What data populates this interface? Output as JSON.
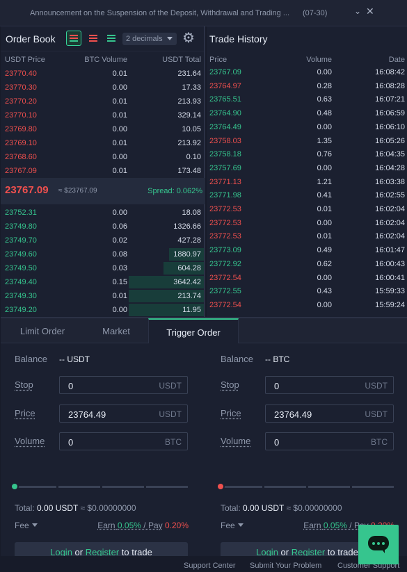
{
  "announcement": {
    "text": "Announcement on the Suspension of the Deposit, Withdrawal and Trading ...",
    "date": "(07-30)"
  },
  "order_book": {
    "title": "Order Book",
    "decimals": "2 decimals",
    "headers": [
      "USDT Price",
      "BTC Volume",
      "USDT Total"
    ],
    "asks": [
      {
        "price": "23770.40",
        "volume": "0.01",
        "total": "231.64"
      },
      {
        "price": "23770.30",
        "volume": "0.00",
        "total": "17.33"
      },
      {
        "price": "23770.20",
        "volume": "0.01",
        "total": "213.93"
      },
      {
        "price": "23770.10",
        "volume": "0.01",
        "total": "329.14"
      },
      {
        "price": "23769.80",
        "volume": "0.00",
        "total": "10.05"
      },
      {
        "price": "23769.10",
        "volume": "0.01",
        "total": "213.92"
      },
      {
        "price": "23768.60",
        "volume": "0.00",
        "total": "0.10"
      },
      {
        "price": "23767.09",
        "volume": "0.01",
        "total": "173.48"
      }
    ],
    "last_price": "23767.09",
    "converted": "≈ $23767.09",
    "spread": "Spread: 0.062%",
    "bids": [
      {
        "price": "23752.31",
        "volume": "0.00",
        "total": "18.08",
        "depth": 0.0
      },
      {
        "price": "23749.80",
        "volume": "0.06",
        "total": "1326.66",
        "depth": 0.0
      },
      {
        "price": "23749.70",
        "volume": "0.02",
        "total": "427.28",
        "depth": 0.0
      },
      {
        "price": "23749.60",
        "volume": "0.08",
        "total": "1880.97",
        "depth": 0.17
      },
      {
        "price": "23749.50",
        "volume": "0.03",
        "total": "604.28",
        "depth": 0.2
      },
      {
        "price": "23749.40",
        "volume": "0.15",
        "total": "3642.42",
        "depth": 0.37
      },
      {
        "price": "23749.30",
        "volume": "0.01",
        "total": "213.74",
        "depth": 0.37
      },
      {
        "price": "23749.20",
        "volume": "0.00",
        "total": "11.95",
        "depth": 0.37
      }
    ]
  },
  "trade_history": {
    "title": "Trade History",
    "headers": [
      "Price",
      "Volume",
      "Date"
    ],
    "trades": [
      {
        "price": "23767.09",
        "volume": "0.00",
        "time": "16:08:42",
        "side": "buy"
      },
      {
        "price": "23764.97",
        "volume": "0.28",
        "time": "16:08:28",
        "side": "sell"
      },
      {
        "price": "23765.51",
        "volume": "0.63",
        "time": "16:07:21",
        "side": "buy"
      },
      {
        "price": "23764.90",
        "volume": "0.48",
        "time": "16:06:59",
        "side": "buy"
      },
      {
        "price": "23764.49",
        "volume": "0.00",
        "time": "16:06:10",
        "side": "buy"
      },
      {
        "price": "23758.03",
        "volume": "1.35",
        "time": "16:05:26",
        "side": "sell"
      },
      {
        "price": "23758.18",
        "volume": "0.76",
        "time": "16:04:35",
        "side": "buy"
      },
      {
        "price": "23757.69",
        "volume": "0.00",
        "time": "16:04:28",
        "side": "buy"
      },
      {
        "price": "23771.13",
        "volume": "1.21",
        "time": "16:03:38",
        "side": "sell"
      },
      {
        "price": "23771.98",
        "volume": "0.41",
        "time": "16:02:55",
        "side": "buy"
      },
      {
        "price": "23772.53",
        "volume": "0.01",
        "time": "16:02:04",
        "side": "sell"
      },
      {
        "price": "23772.53",
        "volume": "0.00",
        "time": "16:02:04",
        "side": "sell"
      },
      {
        "price": "23772.53",
        "volume": "0.01",
        "time": "16:02:04",
        "side": "sell"
      },
      {
        "price": "23773.09",
        "volume": "0.49",
        "time": "16:01:47",
        "side": "buy"
      },
      {
        "price": "23772.92",
        "volume": "0.62",
        "time": "16:00:43",
        "side": "buy"
      },
      {
        "price": "23772.54",
        "volume": "0.00",
        "time": "16:00:41",
        "side": "sell"
      },
      {
        "price": "23772.55",
        "volume": "0.43",
        "time": "15:59:33",
        "side": "buy"
      },
      {
        "price": "23772.54",
        "volume": "0.00",
        "time": "15:59:24",
        "side": "sell"
      }
    ]
  },
  "tabs": [
    "Limit Order",
    "Market",
    "Trigger Order"
  ],
  "buy": {
    "balance_label": "Balance",
    "balance": "-- USDT",
    "stop_label": "Stop",
    "stop": "0",
    "stop_unit": "USDT",
    "price_label": "Price",
    "price": "23764.49",
    "price_unit": "USDT",
    "volume_label": "Volume",
    "volume": "0",
    "volume_unit": "BTC",
    "total_label": "Total:",
    "total": "0.00 USDT",
    "total_conv": "≈ $0.00000000",
    "fee_label": "Fee",
    "earn_label": "Earn",
    "earn": "0.05%",
    "pay_label": "Pay",
    "pay": "0.20%",
    "login": "Login",
    "or": "or",
    "register": "Register",
    "to_trade": "to trade"
  },
  "sell": {
    "balance_label": "Balance",
    "balance": "-- BTC",
    "stop_label": "Stop",
    "stop": "0",
    "stop_unit": "USDT",
    "price_label": "Price",
    "price": "23764.49",
    "price_unit": "USDT",
    "volume_label": "Volume",
    "volume": "0",
    "volume_unit": "BTC",
    "total_label": "Total:",
    "total": "0.00 USDT",
    "total_conv": "≈ $0.00000000",
    "fee_label": "Fee",
    "earn_label": "Earn",
    "earn": "0.05%",
    "pay_label": "Pay",
    "pay": "0.20%",
    "login": "Login",
    "or": "or",
    "register": "Register",
    "to_trade": "to trade"
  },
  "footer": [
    "Support Center",
    "Submit Your Problem",
    "Customer Support"
  ],
  "colors": {
    "up": "#36c58e",
    "down": "#f0504e",
    "bg": "#1b2030"
  }
}
